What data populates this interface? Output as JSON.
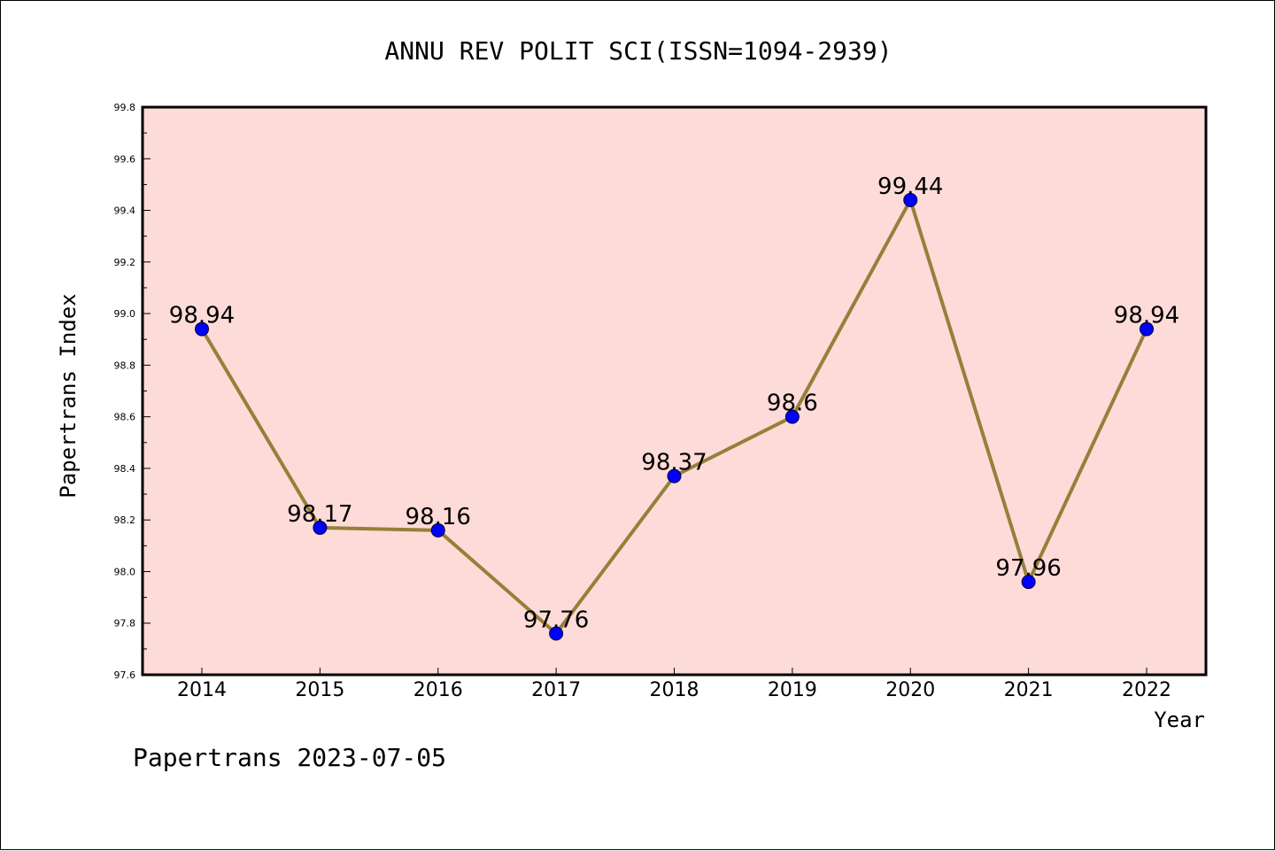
{
  "chart_data": {
    "type": "line",
    "title": "ANNU REV POLIT SCI(ISSN=1094-2939)",
    "xlabel": "Year",
    "ylabel": "Papertrans Index",
    "categories": [
      "2014",
      "2015",
      "2016",
      "2017",
      "2018",
      "2019",
      "2020",
      "2021",
      "2022"
    ],
    "values": [
      98.94,
      98.17,
      98.16,
      97.76,
      98.37,
      98.6,
      99.44,
      97.96,
      98.94
    ],
    "data_labels": [
      "98.94",
      "98.17",
      "98.16",
      "97.76",
      "98.37",
      "98.6",
      "99.44",
      "97.96",
      "98.94"
    ],
    "ylim": [
      97.6,
      99.8
    ],
    "yticks": [
      "97.6",
      "97.8",
      "98.0",
      "98.2",
      "98.4",
      "98.6",
      "98.8",
      "99.0",
      "99.2",
      "99.4",
      "99.6",
      "99.8"
    ],
    "grid": false,
    "legend": "none",
    "colors": {
      "plot_background": "#fddbd8",
      "line": "#95803a",
      "marker": "#0000ff"
    }
  },
  "footer": "Papertrans 2023-07-05"
}
